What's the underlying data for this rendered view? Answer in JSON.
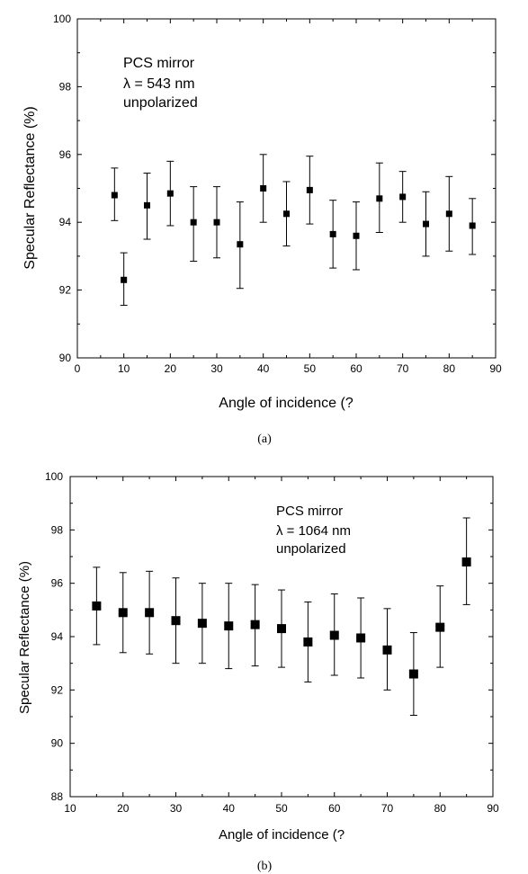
{
  "chart_data": [
    {
      "type": "scatter",
      "caption": "(a)",
      "xlabel": "Angle of incidence (?",
      "ylabel": "Specular Reflectance (%)",
      "xlim": [
        0,
        90
      ],
      "ylim": [
        90,
        100
      ],
      "x_ticks": [
        "0",
        "10",
        "20",
        "30",
        "40",
        "50",
        "60",
        "70",
        "80",
        "90"
      ],
      "y_ticks": [
        "90",
        "92",
        "94",
        "96",
        "98",
        "100"
      ],
      "annotation": [
        "PCS mirror",
        "λ = 543 nm",
        "unpolarized"
      ],
      "grid": false,
      "series": [
        {
          "marker": "square",
          "x": [
            8,
            10,
            15,
            20,
            25,
            30,
            35,
            40,
            45,
            50,
            55,
            60,
            65,
            70,
            75,
            80,
            85
          ],
          "y": [
            94.8,
            92.3,
            94.5,
            94.85,
            94.0,
            94.0,
            93.35,
            95.0,
            94.25,
            94.95,
            93.65,
            93.6,
            94.7,
            94.75,
            93.95,
            94.25,
            93.9
          ],
          "err_low": [
            94.05,
            91.55,
            93.5,
            93.9,
            92.85,
            92.95,
            92.05,
            94.0,
            93.3,
            93.95,
            92.65,
            92.6,
            93.7,
            94.0,
            93.0,
            93.15,
            93.05
          ],
          "err_high": [
            95.6,
            93.1,
            95.45,
            95.8,
            95.05,
            95.05,
            94.6,
            96.0,
            95.2,
            95.95,
            94.65,
            94.6,
            95.75,
            95.5,
            94.9,
            95.35,
            94.7
          ]
        }
      ]
    },
    {
      "type": "scatter",
      "caption": "(b)",
      "xlabel": "Angle of incidence (?",
      "ylabel": "Specular Reflectance (%)",
      "xlim": [
        10,
        90
      ],
      "ylim": [
        88,
        100
      ],
      "x_ticks": [
        "10",
        "20",
        "30",
        "40",
        "50",
        "60",
        "70",
        "80",
        "90"
      ],
      "y_ticks": [
        "88",
        "90",
        "92",
        "94",
        "96",
        "98",
        "100"
      ],
      "annotation": [
        "PCS mirror",
        "λ = 1064 nm",
        "unpolarized"
      ],
      "grid": false,
      "series": [
        {
          "marker": "square",
          "x": [
            15,
            20,
            25,
            30,
            35,
            40,
            45,
            50,
            55,
            60,
            65,
            70,
            75,
            80,
            85
          ],
          "y": [
            95.15,
            94.9,
            94.9,
            94.6,
            94.5,
            94.4,
            94.45,
            94.3,
            93.8,
            94.05,
            93.95,
            93.5,
            92.6,
            94.35,
            96.8
          ],
          "err_low": [
            93.7,
            93.4,
            93.35,
            93.0,
            93.0,
            92.8,
            92.9,
            92.85,
            92.3,
            92.55,
            92.45,
            92.0,
            91.05,
            92.85,
            95.2
          ],
          "err_high": [
            96.6,
            96.4,
            96.45,
            96.2,
            96.0,
            96.0,
            95.95,
            95.75,
            95.3,
            95.6,
            95.45,
            95.05,
            94.15,
            95.9,
            98.45
          ]
        }
      ]
    }
  ]
}
